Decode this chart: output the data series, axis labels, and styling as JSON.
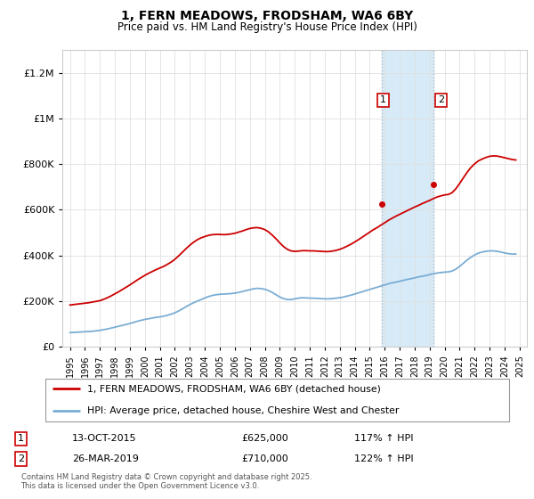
{
  "title": "1, FERN MEADOWS, FRODSHAM, WA6 6BY",
  "subtitle": "Price paid vs. HM Land Registry's House Price Index (HPI)",
  "legend_line1": "1, FERN MEADOWS, FRODSHAM, WA6 6BY (detached house)",
  "legend_line2": "HPI: Average price, detached house, Cheshire West and Chester",
  "footer": "Contains HM Land Registry data © Crown copyright and database right 2025.\nThis data is licensed under the Open Government Licence v3.0.",
  "annotation1_date": "13-OCT-2015",
  "annotation1_price": "£625,000",
  "annotation1_hpi": "117% ↑ HPI",
  "annotation2_date": "26-MAR-2019",
  "annotation2_price": "£710,000",
  "annotation2_hpi": "122% ↑ HPI",
  "sale1_x": 2015.79,
  "sale1_y": 625000,
  "sale2_x": 2019.24,
  "sale2_y": 710000,
  "red_color": "#cc0000",
  "blue_color": "#7aadd4",
  "shade_color": "#d6eaf8",
  "ylim": [
    0,
    1300000
  ],
  "xlim": [
    1994.5,
    2025.5
  ],
  "yticks": [
    0,
    200000,
    400000,
    600000,
    800000,
    1000000,
    1200000
  ],
  "ytick_labels": [
    "£0",
    "£200K",
    "£400K",
    "£600K",
    "£800K",
    "£1M",
    "£1.2M"
  ],
  "hpi_data_x": [
    1995.0,
    1995.25,
    1995.5,
    1995.75,
    1996.0,
    1996.25,
    1996.5,
    1996.75,
    1997.0,
    1997.25,
    1997.5,
    1997.75,
    1998.0,
    1998.25,
    1998.5,
    1998.75,
    1999.0,
    1999.25,
    1999.5,
    1999.75,
    2000.0,
    2000.25,
    2000.5,
    2000.75,
    2001.0,
    2001.25,
    2001.5,
    2001.75,
    2002.0,
    2002.25,
    2002.5,
    2002.75,
    2003.0,
    2003.25,
    2003.5,
    2003.75,
    2004.0,
    2004.25,
    2004.5,
    2004.75,
    2005.0,
    2005.25,
    2005.5,
    2005.75,
    2006.0,
    2006.25,
    2006.5,
    2006.75,
    2007.0,
    2007.25,
    2007.5,
    2007.75,
    2008.0,
    2008.25,
    2008.5,
    2008.75,
    2009.0,
    2009.25,
    2009.5,
    2009.75,
    2010.0,
    2010.25,
    2010.5,
    2010.75,
    2011.0,
    2011.25,
    2011.5,
    2011.75,
    2012.0,
    2012.25,
    2012.5,
    2012.75,
    2013.0,
    2013.25,
    2013.5,
    2013.75,
    2014.0,
    2014.25,
    2014.5,
    2014.75,
    2015.0,
    2015.25,
    2015.5,
    2015.75,
    2016.0,
    2016.25,
    2016.5,
    2016.75,
    2017.0,
    2017.25,
    2017.5,
    2017.75,
    2018.0,
    2018.25,
    2018.5,
    2018.75,
    2019.0,
    2019.25,
    2019.5,
    2019.75,
    2020.0,
    2020.25,
    2020.5,
    2020.75,
    2021.0,
    2021.25,
    2021.5,
    2021.75,
    2022.0,
    2022.25,
    2022.5,
    2022.75,
    2023.0,
    2023.25,
    2023.5,
    2023.75,
    2024.0,
    2024.25,
    2024.5,
    2024.75
  ],
  "hpi_data_y": [
    62000,
    63000,
    64000,
    65000,
    66000,
    67000,
    68000,
    70000,
    72000,
    75000,
    78000,
    82000,
    86000,
    90000,
    94000,
    98000,
    102000,
    107000,
    112000,
    116000,
    120000,
    123000,
    126000,
    129000,
    131000,
    134000,
    138000,
    143000,
    149000,
    157000,
    166000,
    176000,
    185000,
    193000,
    200000,
    207000,
    214000,
    220000,
    225000,
    228000,
    230000,
    231000,
    232000,
    233000,
    235000,
    238000,
    242000,
    246000,
    250000,
    254000,
    256000,
    255000,
    252000,
    246000,
    238000,
    228000,
    218000,
    211000,
    207000,
    207000,
    210000,
    213000,
    215000,
    214000,
    213000,
    213000,
    212000,
    211000,
    210000,
    210000,
    211000,
    213000,
    215000,
    218000,
    222000,
    226000,
    231000,
    236000,
    241000,
    246000,
    251000,
    256000,
    261000,
    266000,
    271000,
    276000,
    280000,
    283000,
    287000,
    291000,
    295000,
    298000,
    302000,
    306000,
    309000,
    312000,
    316000,
    320000,
    323000,
    325000,
    327000,
    328000,
    332000,
    340000,
    352000,
    366000,
    380000,
    392000,
    402000,
    410000,
    415000,
    418000,
    420000,
    420000,
    418000,
    415000,
    411000,
    408000,
    406000,
    406000
  ],
  "red_data_x": [
    1995.0,
    1995.25,
    1995.5,
    1995.75,
    1996.0,
    1996.25,
    1996.5,
    1996.75,
    1997.0,
    1997.25,
    1997.5,
    1997.75,
    1998.0,
    1998.25,
    1998.5,
    1998.75,
    1999.0,
    1999.25,
    1999.5,
    1999.75,
    2000.0,
    2000.25,
    2000.5,
    2000.75,
    2001.0,
    2001.25,
    2001.5,
    2001.75,
    2002.0,
    2002.25,
    2002.5,
    2002.75,
    2003.0,
    2003.25,
    2003.5,
    2003.75,
    2004.0,
    2004.25,
    2004.5,
    2004.75,
    2005.0,
    2005.25,
    2005.5,
    2005.75,
    2006.0,
    2006.25,
    2006.5,
    2006.75,
    2007.0,
    2007.25,
    2007.5,
    2007.75,
    2008.0,
    2008.25,
    2008.5,
    2008.75,
    2009.0,
    2009.25,
    2009.5,
    2009.75,
    2010.0,
    2010.25,
    2010.5,
    2010.75,
    2011.0,
    2011.25,
    2011.5,
    2011.75,
    2012.0,
    2012.25,
    2012.5,
    2012.75,
    2013.0,
    2013.25,
    2013.5,
    2013.75,
    2014.0,
    2014.25,
    2014.5,
    2014.75,
    2015.0,
    2015.25,
    2015.5,
    2015.75,
    2016.0,
    2016.25,
    2016.5,
    2016.75,
    2017.0,
    2017.25,
    2017.5,
    2017.75,
    2018.0,
    2018.25,
    2018.5,
    2018.75,
    2019.0,
    2019.25,
    2019.5,
    2019.75,
    2020.0,
    2020.25,
    2020.5,
    2020.75,
    2021.0,
    2021.25,
    2021.5,
    2021.75,
    2022.0,
    2022.25,
    2022.5,
    2022.75,
    2023.0,
    2023.25,
    2023.5,
    2023.75,
    2024.0,
    2024.25,
    2024.5,
    2024.75
  ],
  "red_data_y": [
    183000,
    185000,
    187000,
    189000,
    191000,
    193000,
    196000,
    199000,
    202000,
    208000,
    215000,
    223000,
    232000,
    241000,
    251000,
    261000,
    271000,
    282000,
    293000,
    303000,
    313000,
    322000,
    330000,
    338000,
    345000,
    352000,
    361000,
    371000,
    383000,
    398000,
    414000,
    430000,
    445000,
    458000,
    469000,
    477000,
    483000,
    488000,
    491000,
    492000,
    492000,
    491000,
    492000,
    494000,
    497000,
    502000,
    507000,
    513000,
    518000,
    521000,
    522000,
    519000,
    513000,
    503000,
    489000,
    473000,
    455000,
    439000,
    427000,
    420000,
    418000,
    419000,
    421000,
    421000,
    420000,
    420000,
    419000,
    418000,
    417000,
    417000,
    419000,
    422000,
    427000,
    433000,
    441000,
    449000,
    459000,
    469000,
    480000,
    491000,
    502000,
    513000,
    522000,
    533000,
    543000,
    554000,
    563000,
    572000,
    580000,
    588000,
    596000,
    604000,
    612000,
    619000,
    627000,
    634000,
    641000,
    649000,
    656000,
    661000,
    665000,
    667000,
    675000,
    692000,
    715000,
    740000,
    764000,
    785000,
    801000,
    814000,
    822000,
    829000,
    834000,
    836000,
    835000,
    832000,
    828000,
    824000,
    820000,
    818000
  ]
}
